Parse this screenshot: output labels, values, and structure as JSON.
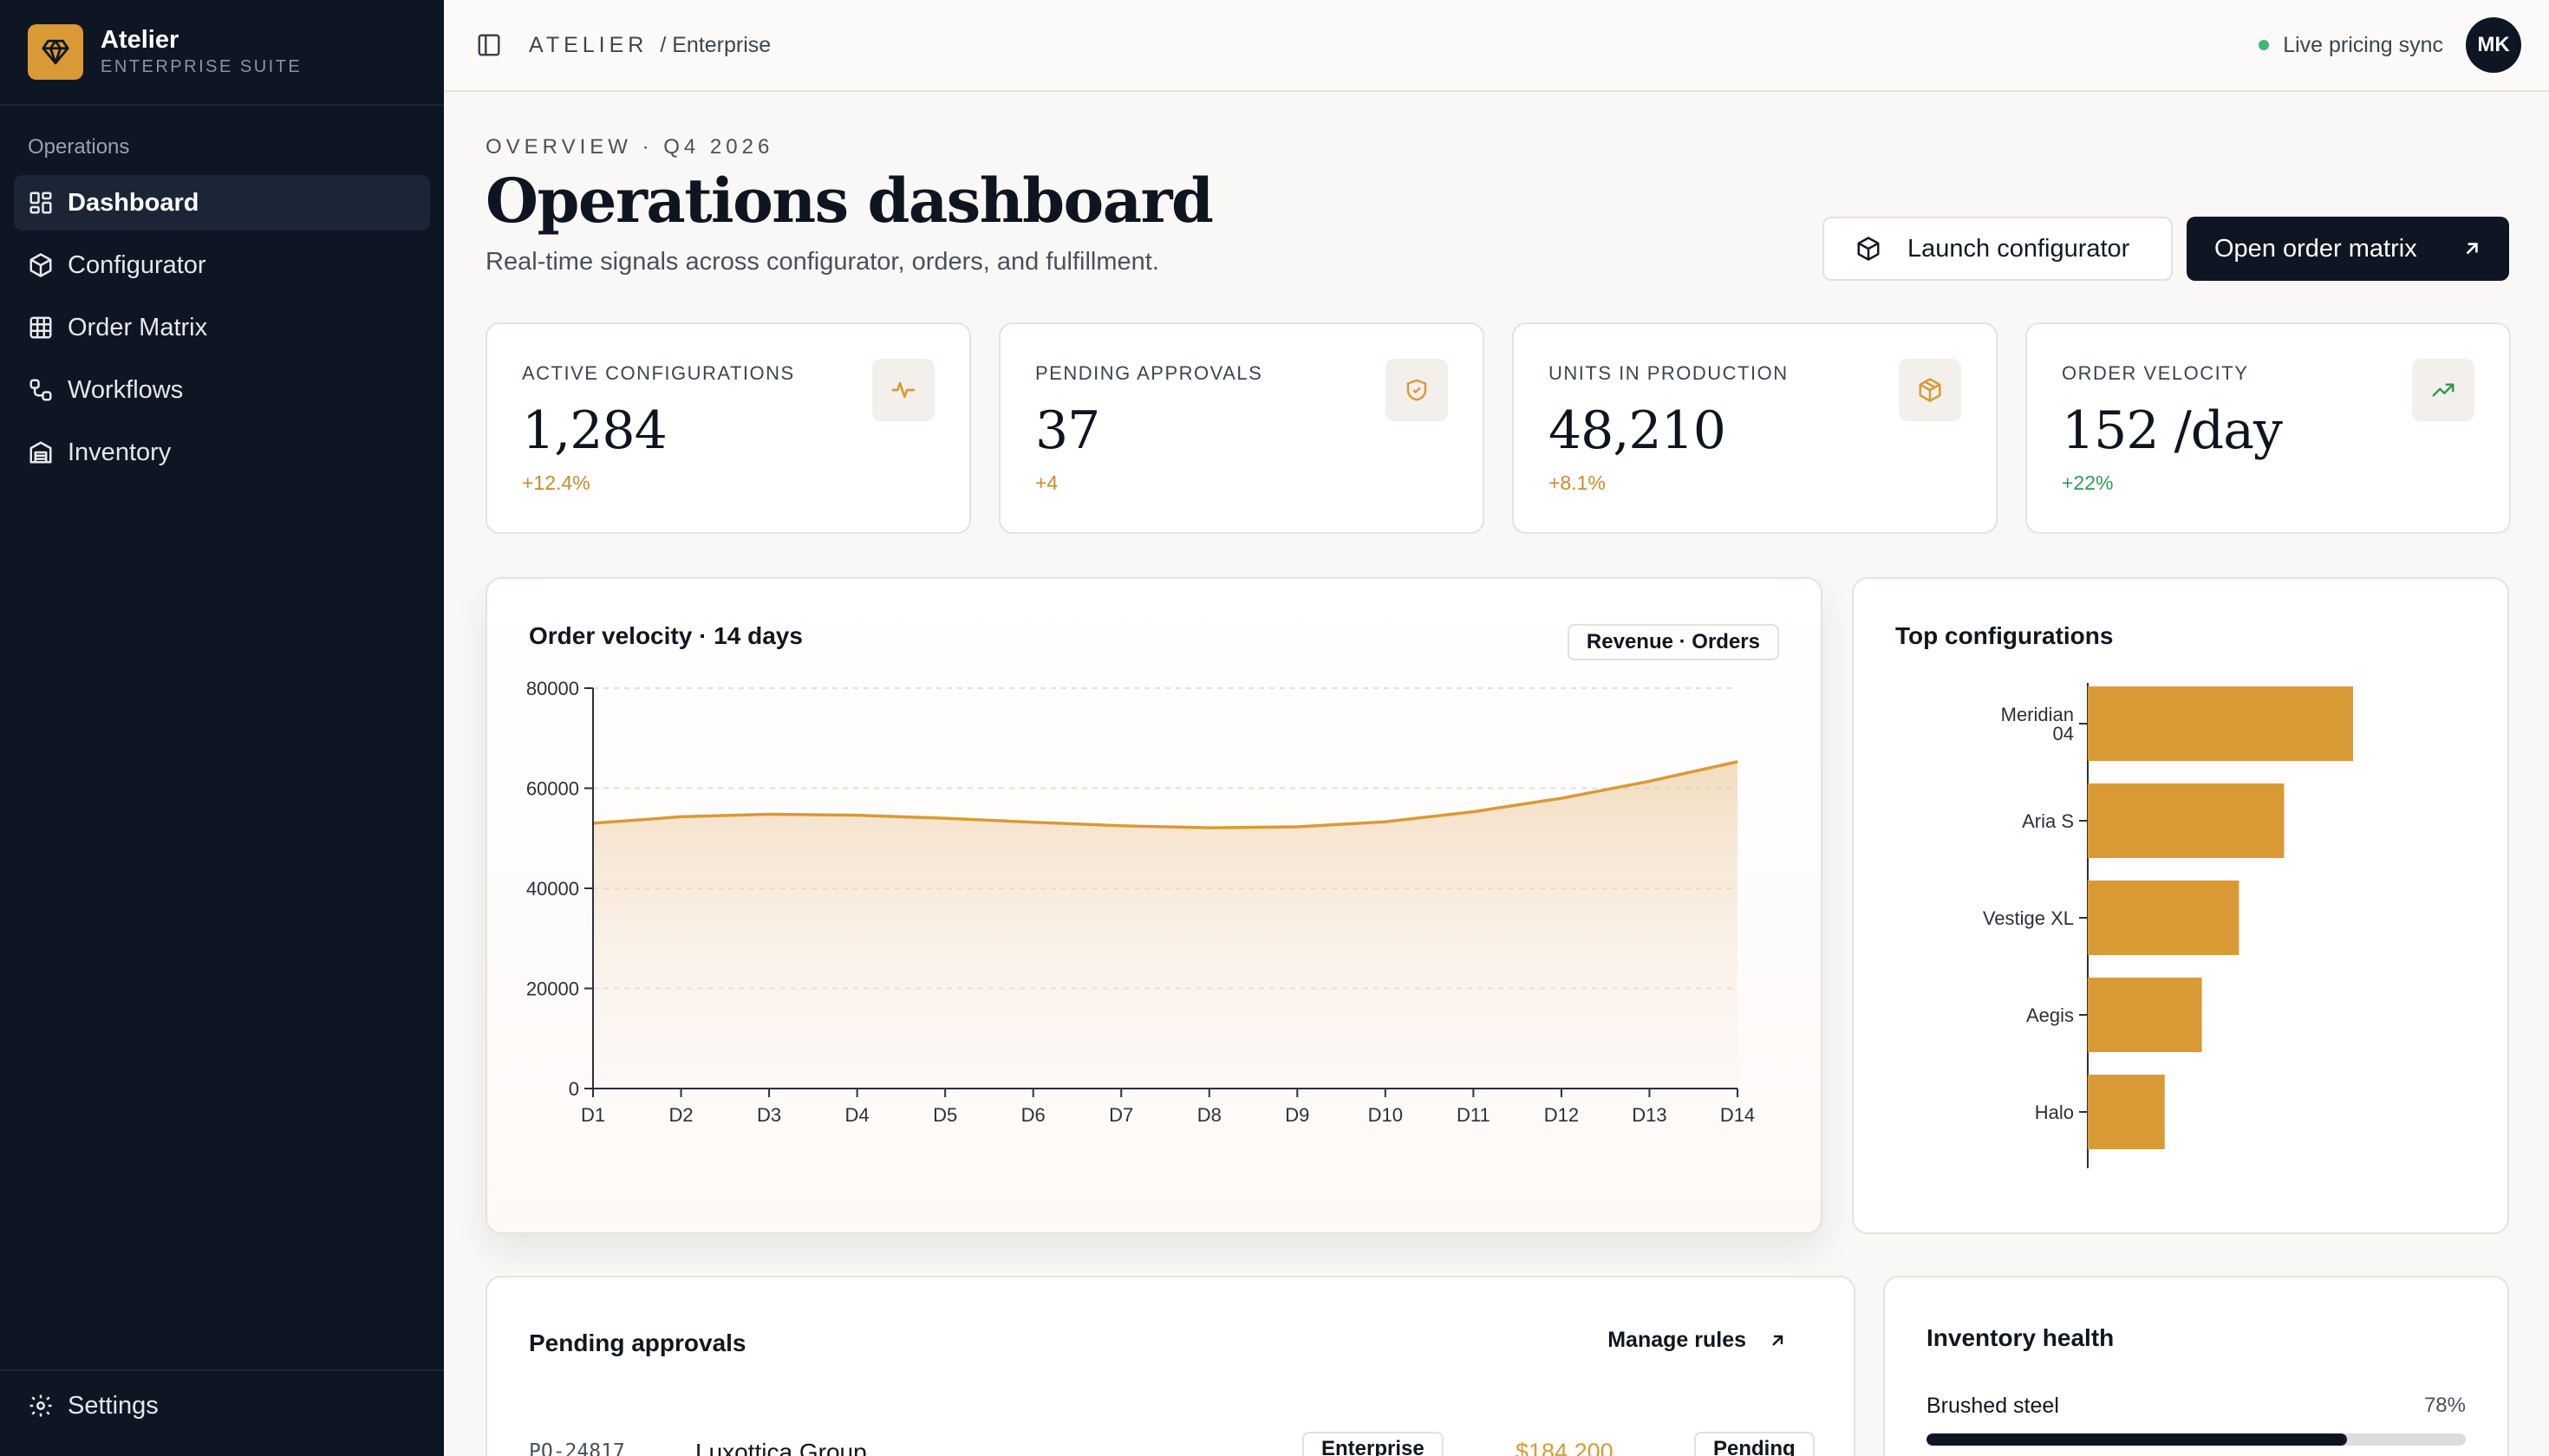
{
  "brand": {
    "name": "Atelier",
    "subtitle": "ENTERPRISE SUITE"
  },
  "sidebar": {
    "section": "Operations",
    "items": [
      {
        "label": "Dashboard",
        "icon": "grid-icon",
        "active": true
      },
      {
        "label": "Configurator",
        "icon": "cube-icon"
      },
      {
        "label": "Order Matrix",
        "icon": "table-icon"
      },
      {
        "label": "Workflows",
        "icon": "workflow-icon"
      },
      {
        "label": "Inventory",
        "icon": "warehouse-icon"
      }
    ],
    "footer": {
      "label": "Settings",
      "icon": "gear-icon"
    }
  },
  "topbar": {
    "brand": "ATELIER",
    "crumb": "/ Enterprise",
    "live": "Live pricing sync",
    "avatar": "MK"
  },
  "page": {
    "overline": "OVERVIEW · Q4 2026",
    "title": "Operations dashboard",
    "subtitle": "Real-time signals across configurator, orders, and fulfillment.",
    "launch_label": "Launch configurator",
    "open_label": "Open order matrix"
  },
  "kpis": [
    {
      "label": "Active configurations",
      "value": "1,284",
      "delta": "+12.4%",
      "delta_color": "#c98a2c",
      "icon": "activity-icon"
    },
    {
      "label": "Pending approvals",
      "value": "37",
      "delta": "+4",
      "delta_color": "#c98a2c",
      "icon": "shield-check-icon"
    },
    {
      "label": "Units in production",
      "value": "48,210",
      "delta": "+8.1%",
      "delta_color": "#c98a2c",
      "icon": "package-icon"
    },
    {
      "label": "Order velocity",
      "value": "152 /day",
      "delta": "+22%",
      "delta_color": "#2f9a57",
      "icon": "trend-up-icon"
    }
  ],
  "velocity": {
    "title": "Order velocity · 14 days",
    "chip": "Revenue · Orders"
  },
  "top_configs": {
    "title": "Top configurations"
  },
  "approvals": {
    "title": "Pending approvals",
    "manage": "Manage rules",
    "rows": [
      {
        "id": "PO-24817",
        "client": "Luxottica Group",
        "tier": "Enterprise",
        "amount": "$184,200",
        "status": "Pending"
      }
    ]
  },
  "inventory": {
    "title": "Inventory health",
    "items": [
      {
        "name": "Brushed steel",
        "percent": "78%",
        "level": 0.78
      }
    ]
  },
  "colors": {
    "accent": "#d99a35",
    "navy": "#0e1623",
    "live": "#45b574"
  },
  "chart_data": [
    {
      "type": "area",
      "title": "Order velocity · 14 days",
      "legend": "Revenue · Orders",
      "x": [
        "D1",
        "D2",
        "D3",
        "D4",
        "D5",
        "D6",
        "D7",
        "D8",
        "D9",
        "D10",
        "D11",
        "D12",
        "D13",
        "D14"
      ],
      "series": [
        {
          "values": [
            53000,
            54300,
            54800,
            54600,
            54000,
            53200,
            52500,
            52100,
            52300,
            53300,
            55300,
            58000,
            61400,
            65300
          ]
        }
      ],
      "yticks": [
        "0",
        "20000",
        "40000",
        "60000",
        "80000"
      ],
      "ylim": [
        0,
        80000
      ],
      "grid": true
    },
    {
      "type": "bar",
      "orientation": "horizontal",
      "title": "Top configurations",
      "categories": [
        "Meridian 04",
        "Aria S",
        "Vestige XL",
        "Aegis",
        "Halo"
      ],
      "values": [
        100,
        74,
        57,
        43,
        29
      ]
    }
  ]
}
